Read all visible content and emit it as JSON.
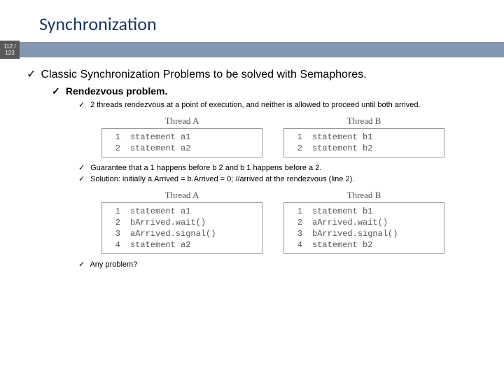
{
  "title": "Synchronization",
  "page": {
    "num": "112 /",
    "den": "123"
  },
  "lvl1": "Classic Synchronization Problems to be solved with Semaphores.",
  "lvl2": "Rendezvous problem.",
  "b1": "2 threads rendezvous at a point of execution, and neither is allowed to proceed until both arrived.",
  "b2": "Guarantee that a 1 happens before b 2 and b 1 happens before a 2.",
  "b3": "Solution: initially a.Arrived = b.Arrived = 0; //arrived at the rendezvous (line 2).",
  "b4": "Any problem?",
  "code1": {
    "A": {
      "header": "Thread A",
      "lines": [
        {
          "n": "1",
          "t": "statement a1"
        },
        {
          "n": "2",
          "t": "statement a2"
        }
      ]
    },
    "B": {
      "header": "Thread B",
      "lines": [
        {
          "n": "1",
          "t": "statement b1"
        },
        {
          "n": "2",
          "t": "statement b2"
        }
      ]
    }
  },
  "code2": {
    "A": {
      "header": "Thread A",
      "lines": [
        {
          "n": "1",
          "t": "statement a1"
        },
        {
          "n": "2",
          "t": "bArrived.wait()"
        },
        {
          "n": "3",
          "t": "aArrived.signal()"
        },
        {
          "n": "4",
          "t": "statement a2"
        }
      ]
    },
    "B": {
      "header": "Thread B",
      "lines": [
        {
          "n": "1",
          "t": "statement b1"
        },
        {
          "n": "2",
          "t": "aArrived.wait()"
        },
        {
          "n": "3",
          "t": "bArrived.signal()"
        },
        {
          "n": "4",
          "t": "statement b2"
        }
      ]
    }
  },
  "colors": {
    "title": "#17375e",
    "bar": "#8497b0",
    "tag": "#595959",
    "code_border": "#999999",
    "code_text": "#555555"
  }
}
